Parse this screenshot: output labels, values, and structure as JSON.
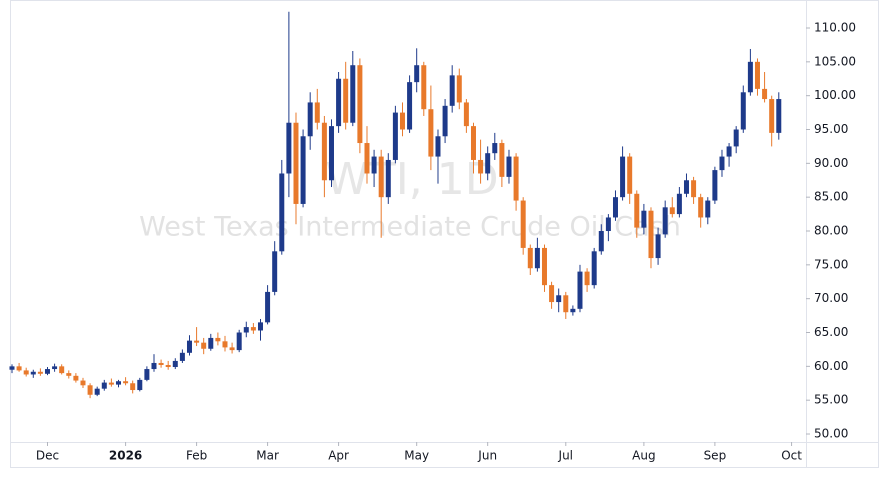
{
  "chart_data": {
    "type": "candlestick",
    "watermark": {
      "title": "WTI, 1D",
      "subtitle": "West Texas Intermediate Crude Oil Cash"
    },
    "up_color": "#1e3a8a",
    "down_color": "#e8792b",
    "open": [
      59.5,
      60.0,
      59.4,
      58.8,
      59.2,
      58.9,
      59.6,
      60.0,
      59.0,
      58.6,
      57.9,
      57.2,
      55.8,
      56.7,
      57.6,
      57.3,
      57.8,
      57.5,
      56.5,
      58.0,
      59.6,
      60.5,
      60.2,
      59.9,
      60.8,
      62.0,
      63.8,
      63.5,
      62.6,
      64.2,
      63.7,
      62.8,
      62.4,
      65.0,
      65.8,
      65.3,
      66.5,
      71.0,
      77.0,
      88.5,
      96.0,
      84.0,
      94.0,
      99.0,
      96.0,
      87.5,
      95.5,
      102.5,
      96.0,
      104.5,
      93.0,
      88.5,
      91.0,
      85.0,
      90.5,
      97.5,
      95.0,
      102.0,
      104.5,
      98.0,
      91.0,
      94.0,
      98.5,
      103.0,
      99.0,
      95.5,
      90.5,
      88.5,
      91.5,
      93.0,
      88.0,
      91.0,
      84.5,
      77.5,
      74.5,
      77.5,
      72.0,
      69.5,
      70.5,
      68.0,
      68.5,
      74.0,
      72.0,
      77.0,
      80.0,
      82.0,
      85.0,
      91.0,
      85.5,
      80.5,
      83.0,
      76.0,
      79.5,
      83.5,
      82.5,
      85.5,
      87.5,
      85.0,
      82.0,
      84.5,
      89.0,
      91.0,
      92.5,
      95.0,
      100.5,
      105.0,
      101.0,
      99.5,
      94.5
    ],
    "high": [
      60.3,
      60.5,
      59.8,
      59.5,
      59.7,
      59.9,
      60.4,
      60.3,
      59.4,
      59.0,
      58.3,
      57.5,
      57.0,
      58.0,
      58.2,
      58.0,
      58.4,
      57.9,
      58.3,
      60.0,
      61.8,
      61.0,
      60.8,
      61.2,
      62.5,
      64.6,
      65.8,
      64.2,
      64.8,
      65.0,
      64.5,
      63.5,
      65.4,
      66.6,
      66.4,
      67.0,
      72.0,
      78.5,
      90.5,
      112.4,
      97.5,
      95.0,
      100.5,
      101.0,
      97.0,
      96.5,
      103.5,
      105.0,
      106.6,
      105.5,
      95.5,
      92.0,
      92.0,
      91.5,
      98.5,
      99.0,
      103.0,
      107.0,
      105.0,
      101.5,
      95.0,
      99.5,
      104.5,
      104.0,
      99.5,
      96.0,
      93.5,
      92.5,
      94.5,
      93.5,
      92.0,
      91.5,
      85.0,
      78.0,
      79.0,
      78.0,
      72.5,
      71.5,
      71.0,
      69.0,
      75.0,
      74.5,
      77.5,
      81.0,
      82.5,
      86.0,
      92.5,
      91.5,
      86.0,
      84.0,
      83.5,
      80.5,
      84.5,
      85.0,
      86.5,
      88.5,
      88.0,
      85.5,
      85.0,
      89.5,
      92.0,
      93.0,
      95.5,
      101.5,
      106.9,
      105.5,
      103.5,
      100.0,
      100.5
    ],
    "low": [
      59.0,
      59.2,
      58.5,
      58.3,
      58.6,
      58.7,
      59.2,
      58.8,
      58.2,
      57.6,
      56.8,
      55.3,
      55.6,
      56.4,
      57.0,
      56.9,
      57.2,
      56.0,
      56.3,
      57.8,
      59.2,
      59.8,
      59.5,
      59.6,
      60.5,
      61.6,
      63.0,
      61.8,
      62.3,
      63.1,
      62.2,
      61.9,
      62.1,
      64.3,
      64.8,
      63.8,
      66.2,
      70.5,
      76.5,
      85.0,
      81.0,
      83.5,
      92.0,
      95.0,
      85.0,
      86.5,
      94.5,
      95.0,
      95.5,
      91.5,
      87.0,
      86.5,
      79.0,
      84.0,
      90.0,
      94.0,
      94.5,
      100.5,
      97.0,
      89.0,
      87.0,
      93.0,
      97.5,
      98.0,
      94.5,
      88.5,
      87.0,
      87.5,
      90.5,
      86.5,
      87.0,
      83.0,
      76.5,
      73.5,
      74.0,
      71.0,
      68.5,
      68.0,
      67.0,
      67.5,
      68.0,
      71.0,
      71.5,
      76.5,
      78.5,
      81.5,
      84.5,
      84.0,
      79.0,
      79.5,
      74.5,
      75.0,
      79.0,
      82.0,
      82.0,
      85.0,
      84.0,
      80.5,
      81.0,
      84.0,
      88.0,
      89.5,
      91.5,
      94.5,
      100.0,
      100.0,
      99.0,
      92.5,
      93.5
    ],
    "close": [
      60.0,
      59.4,
      58.8,
      59.2,
      58.9,
      59.6,
      60.0,
      59.0,
      58.6,
      57.9,
      57.2,
      55.8,
      56.7,
      57.6,
      57.3,
      57.8,
      57.5,
      56.5,
      58.0,
      59.6,
      60.5,
      60.2,
      59.9,
      60.8,
      62.0,
      63.8,
      63.5,
      62.6,
      64.2,
      63.7,
      62.8,
      62.4,
      65.0,
      65.8,
      65.3,
      66.5,
      71.0,
      77.0,
      88.5,
      96.0,
      84.0,
      94.0,
      99.0,
      96.0,
      87.5,
      95.5,
      102.5,
      96.0,
      104.5,
      93.0,
      88.5,
      91.0,
      85.0,
      90.5,
      97.5,
      95.0,
      102.0,
      104.5,
      98.0,
      91.0,
      94.0,
      98.5,
      103.0,
      99.0,
      95.5,
      90.5,
      88.5,
      91.5,
      93.0,
      88.0,
      91.0,
      84.5,
      77.5,
      74.5,
      77.5,
      72.0,
      69.5,
      70.5,
      68.0,
      68.5,
      74.0,
      72.0,
      77.0,
      80.0,
      82.0,
      85.0,
      91.0,
      85.5,
      80.5,
      83.0,
      76.0,
      79.5,
      83.5,
      82.5,
      85.5,
      87.5,
      85.0,
      82.0,
      84.5,
      89.0,
      91.0,
      92.5,
      95.0,
      100.5,
      105.0,
      101.0,
      99.5,
      94.5,
      99.5
    ],
    "xlim": [
      -0.28,
      111.27
    ],
    "xticks": [
      {
        "value": 5,
        "label": "Dec"
      },
      {
        "value": 16,
        "label": "2026"
      },
      {
        "value": 26,
        "label": "Feb"
      },
      {
        "value": 36,
        "label": "Mar"
      },
      {
        "value": 46,
        "label": "Apr"
      },
      {
        "value": 57,
        "label": "May"
      },
      {
        "value": 67,
        "label": "Jun"
      },
      {
        "value": 78,
        "label": "Jul"
      },
      {
        "value": 89,
        "label": "Aug"
      },
      {
        "value": 99,
        "label": "Sep"
      },
      {
        "value": 109.8,
        "label": "Oct"
      }
    ],
    "ylim": [
      48.82,
      112.66
    ],
    "yticks": [
      {
        "value": 50,
        "label": "50.00"
      },
      {
        "value": 55,
        "label": "55.00"
      },
      {
        "value": 60,
        "label": "60.00"
      },
      {
        "value": 65,
        "label": "65.00"
      },
      {
        "value": 70,
        "label": "70.00"
      },
      {
        "value": 75,
        "label": "75.00"
      },
      {
        "value": 80,
        "label": "80.00"
      },
      {
        "value": 85,
        "label": "85.00"
      },
      {
        "value": 90,
        "label": "90.00"
      },
      {
        "value": 95,
        "label": "95.00"
      },
      {
        "value": 100,
        "label": "100.00"
      },
      {
        "value": 105,
        "label": "105.00"
      },
      {
        "value": 110,
        "label": "110.00"
      }
    ]
  }
}
